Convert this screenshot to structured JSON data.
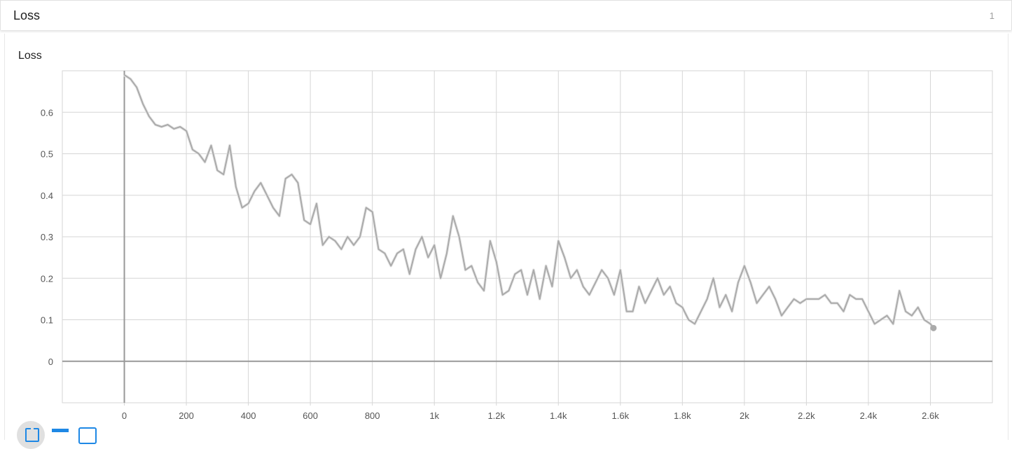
{
  "section": {
    "title": "Loss",
    "count": "1"
  },
  "colors": {
    "line": "#aaaaaa",
    "raw_line": "#e6e6e6",
    "grid": "#d6d6d6",
    "axis": "#999999",
    "toolbar_accent": "#1e88e5"
  },
  "toolbar": {
    "icons": [
      "fit-domain-icon",
      "show-data-icon",
      "log-scale-icon"
    ]
  },
  "chart_data": {
    "type": "line",
    "title": "Loss",
    "xlabel": "",
    "ylabel": "",
    "xlim": [
      -200,
      2800
    ],
    "ylim": [
      -0.1,
      0.7
    ],
    "grid": true,
    "x_ticks": [
      0,
      200,
      400,
      600,
      800,
      1000,
      1200,
      1400,
      1600,
      1800,
      2000,
      2200,
      2400,
      2600
    ],
    "x_tick_labels": [
      "0",
      "200",
      "400",
      "600",
      "800",
      "1k",
      "1.2k",
      "1.4k",
      "1.6k",
      "1.8k",
      "2k",
      "2.2k",
      "2.4k",
      "2.6k"
    ],
    "y_ticks": [
      0,
      0.1,
      0.2,
      0.3,
      0.4,
      0.5,
      0.6
    ],
    "y_tick_labels": [
      "0",
      "0.1",
      "0.2",
      "0.3",
      "0.4",
      "0.5",
      "0.6"
    ],
    "series": [
      {
        "x": [
          0,
          20,
          40,
          60,
          80,
          100,
          120,
          140,
          160,
          180,
          200,
          220,
          240,
          260,
          280,
          300,
          320,
          340,
          360,
          380,
          400,
          420,
          440,
          460,
          480,
          500,
          520,
          540,
          560,
          580,
          600,
          620,
          640,
          660,
          680,
          700,
          720,
          740,
          760,
          780,
          800,
          820,
          840,
          860,
          880,
          900,
          920,
          940,
          960,
          980,
          1000,
          1020,
          1040,
          1060,
          1080,
          1100,
          1120,
          1140,
          1160,
          1180,
          1200,
          1220,
          1240,
          1260,
          1280,
          1300,
          1320,
          1340,
          1360,
          1380,
          1400,
          1420,
          1440,
          1460,
          1480,
          1500,
          1520,
          1540,
          1560,
          1580,
          1600,
          1620,
          1640,
          1660,
          1680,
          1700,
          1720,
          1740,
          1760,
          1780,
          1800,
          1820,
          1840,
          1860,
          1880,
          1900,
          1920,
          1940,
          1960,
          1980,
          2000,
          2020,
          2040,
          2060,
          2080,
          2100,
          2120,
          2140,
          2160,
          2180,
          2200,
          2220,
          2240,
          2260,
          2280,
          2300,
          2320,
          2340,
          2360,
          2380,
          2400,
          2420,
          2440,
          2460,
          2480,
          2500,
          2520,
          2540,
          2560,
          2580,
          2600,
          2610
        ],
        "y": [
          0.69,
          0.68,
          0.66,
          0.62,
          0.59,
          0.57,
          0.565,
          0.57,
          0.56,
          0.565,
          0.555,
          0.51,
          0.5,
          0.48,
          0.52,
          0.46,
          0.45,
          0.52,
          0.42,
          0.37,
          0.38,
          0.41,
          0.43,
          0.4,
          0.37,
          0.35,
          0.44,
          0.45,
          0.43,
          0.34,
          0.33,
          0.38,
          0.28,
          0.3,
          0.29,
          0.27,
          0.3,
          0.28,
          0.3,
          0.37,
          0.36,
          0.27,
          0.26,
          0.23,
          0.26,
          0.27,
          0.21,
          0.27,
          0.3,
          0.25,
          0.28,
          0.2,
          0.26,
          0.35,
          0.3,
          0.22,
          0.23,
          0.19,
          0.17,
          0.29,
          0.24,
          0.16,
          0.17,
          0.21,
          0.22,
          0.16,
          0.22,
          0.15,
          0.23,
          0.18,
          0.29,
          0.25,
          0.2,
          0.22,
          0.18,
          0.16,
          0.19,
          0.22,
          0.2,
          0.16,
          0.22,
          0.12,
          0.12,
          0.18,
          0.14,
          0.17,
          0.2,
          0.16,
          0.18,
          0.14,
          0.13,
          0.1,
          0.09,
          0.12,
          0.15,
          0.2,
          0.13,
          0.16,
          0.12,
          0.19,
          0.23,
          0.19,
          0.14,
          0.16,
          0.18,
          0.15,
          0.11,
          0.13,
          0.15,
          0.14,
          0.15,
          0.15,
          0.15,
          0.16,
          0.14,
          0.14,
          0.12,
          0.16,
          0.15,
          0.15,
          0.12,
          0.09,
          0.1,
          0.11,
          0.09,
          0.17,
          0.12,
          0.11,
          0.13,
          0.1,
          0.09,
          0.08
        ]
      }
    ]
  }
}
